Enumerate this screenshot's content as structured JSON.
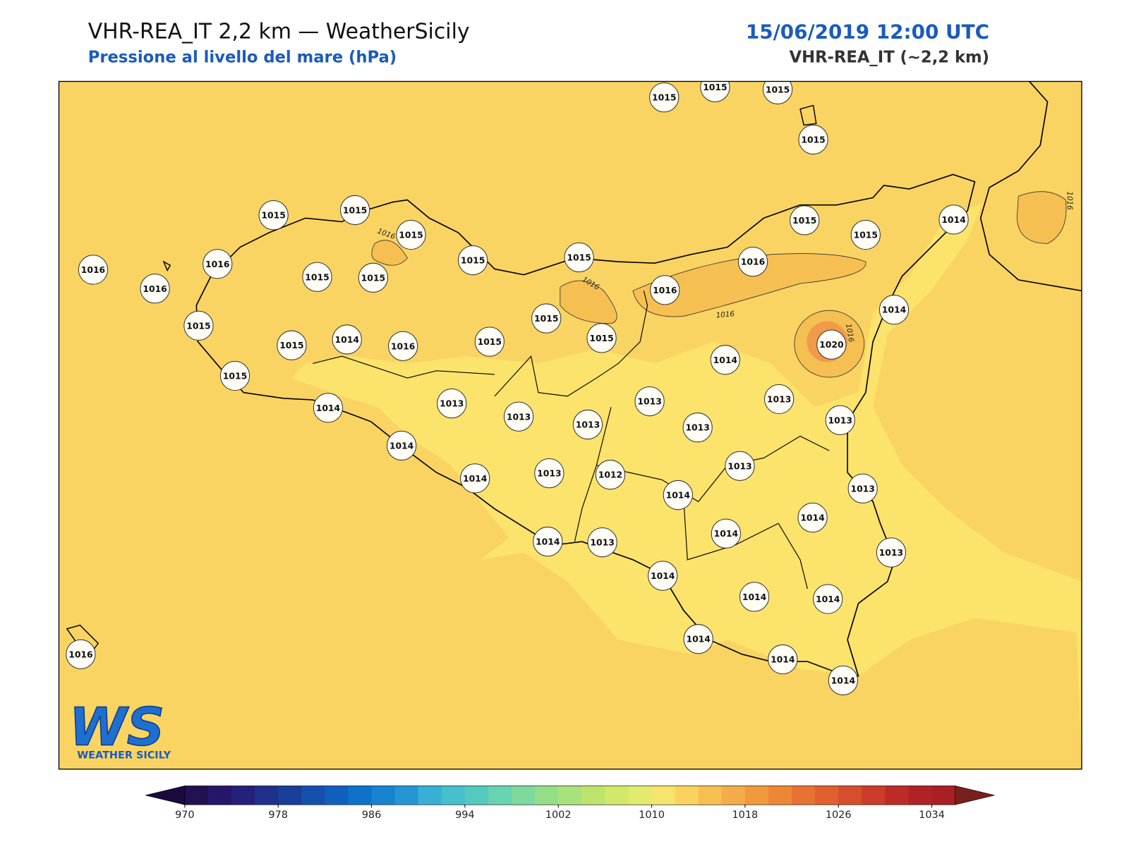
{
  "header": {
    "title": "VHR-REA_IT 2,2 km — WeatherSicily",
    "subtitle": "Pressione al livello del mare (hPa)",
    "datetime": "15/06/2019 12:00 UTC",
    "model": "VHR-REA_IT (~2,2 km)"
  },
  "stations": [
    1015,
    1015,
    1015,
    1015,
    1015,
    1015,
    1015,
    1016,
    1016,
    1016,
    1015,
    1015,
    1015,
    1015,
    1015,
    1015,
    1014,
    1016,
    1016,
    1015,
    1015,
    1015,
    1015,
    1014,
    1016,
    1015,
    1014,
    1020,
    1014,
    1015,
    1014,
    1013,
    1013,
    1013,
    1013,
    1013,
    1013,
    1013,
    1014,
    1014,
    1013,
    1012,
    1013,
    1014,
    1013,
    1014,
    1014,
    1014,
    1013,
    1013,
    1014,
    1014,
    1014,
    1014,
    1014,
    1014,
    1016
  ],
  "contour_labels": [
    1016,
    1016,
    1016,
    1016,
    1016
  ],
  "colorbar": {
    "lim": [
      970,
      1036
    ],
    "ticks": [
      970,
      978,
      986,
      994,
      1002,
      1010,
      1018,
      1026,
      1034
    ],
    "under": "#1b0a3f",
    "over": "#7a1f1f",
    "colors": [
      "#231150",
      "#26166a",
      "#25217a",
      "#21308a",
      "#1a3f99",
      "#1550ad",
      "#0f60bd",
      "#0d72c8",
      "#1884cf",
      "#2496d4",
      "#36b0d4",
      "#45c0cc",
      "#55c9bd",
      "#68d3b0",
      "#7ed99c",
      "#95de87",
      "#a8e27a",
      "#bde56d",
      "#d2e86a",
      "#e2ea70",
      "#f6e46c",
      "#fad35f",
      "#f7be50",
      "#f3ac47",
      "#f09a3d",
      "#ec8736",
      "#e77233",
      "#e0602f",
      "#d64e2b",
      "#ca3c29",
      "#bd2b28",
      "#b12226",
      "#a81f24"
    ]
  },
  "logo": {
    "mark": "WS",
    "text": "WEATHER SICILY"
  }
}
